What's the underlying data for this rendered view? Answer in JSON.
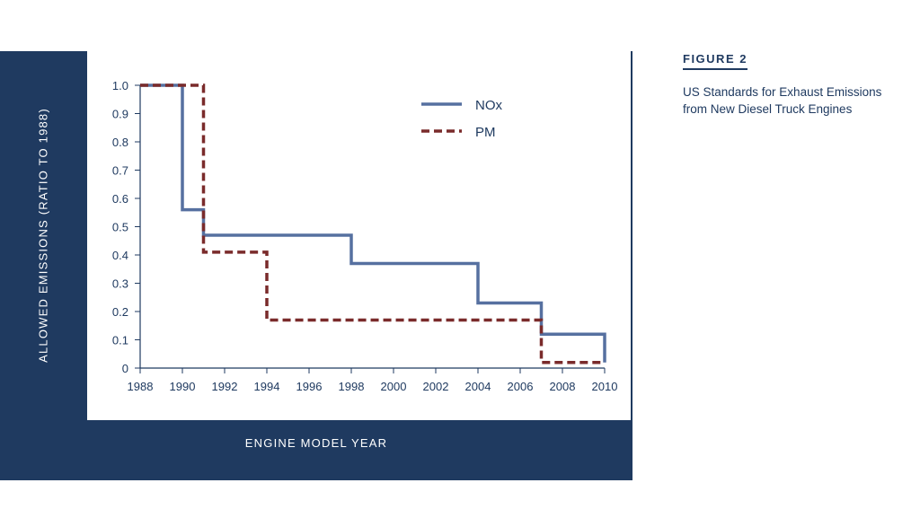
{
  "figure": {
    "label": "FIGURE 2",
    "caption": "US Standards for Exhaust Emissions from New Diesel Truck Engines"
  },
  "colors": {
    "frame": "#1f3a60",
    "nox": "#5670a0",
    "pm": "#7a2b2b",
    "axis": "#1f3a60"
  },
  "chart_data": {
    "type": "line",
    "step": true,
    "xlabel": "ENGINE MODEL YEAR",
    "ylabel": "ALLOWED EMISSIONS (RATIO TO 1988)",
    "xlim": [
      1988,
      2010
    ],
    "ylim": [
      0,
      1.0
    ],
    "xticks": [
      1988,
      1990,
      1992,
      1994,
      1996,
      1998,
      2000,
      2002,
      2004,
      2006,
      2008,
      2010
    ],
    "yticks": [
      {
        "v": 0,
        "label": "0"
      },
      {
        "v": 0.1,
        "label": "0.1"
      },
      {
        "v": 0.2,
        "label": "0.2"
      },
      {
        "v": 0.3,
        "label": "0.3"
      },
      {
        "v": 0.4,
        "label": "0.4"
      },
      {
        "v": 0.5,
        "label": "0.5"
      },
      {
        "v": 0.6,
        "label": "0.6"
      },
      {
        "v": 0.7,
        "label": "0.7"
      },
      {
        "v": 0.8,
        "label": "0.8"
      },
      {
        "v": 0.9,
        "label": "0.9"
      },
      {
        "v": 1.0,
        "label": "1.0"
      }
    ],
    "legend_position": "top-right",
    "series": [
      {
        "name": "NOx",
        "style": "solid",
        "x": [
          1988,
          1990,
          1991,
          1998,
          2004,
          2007,
          2010
        ],
        "y": [
          1.0,
          0.56,
          0.47,
          0.37,
          0.23,
          0.12,
          0.02
        ]
      },
      {
        "name": "PM",
        "style": "dashed",
        "x": [
          1988,
          1991,
          1994,
          2007,
          2010
        ],
        "y": [
          1.0,
          0.41,
          0.17,
          0.02,
          0.02
        ]
      }
    ]
  }
}
